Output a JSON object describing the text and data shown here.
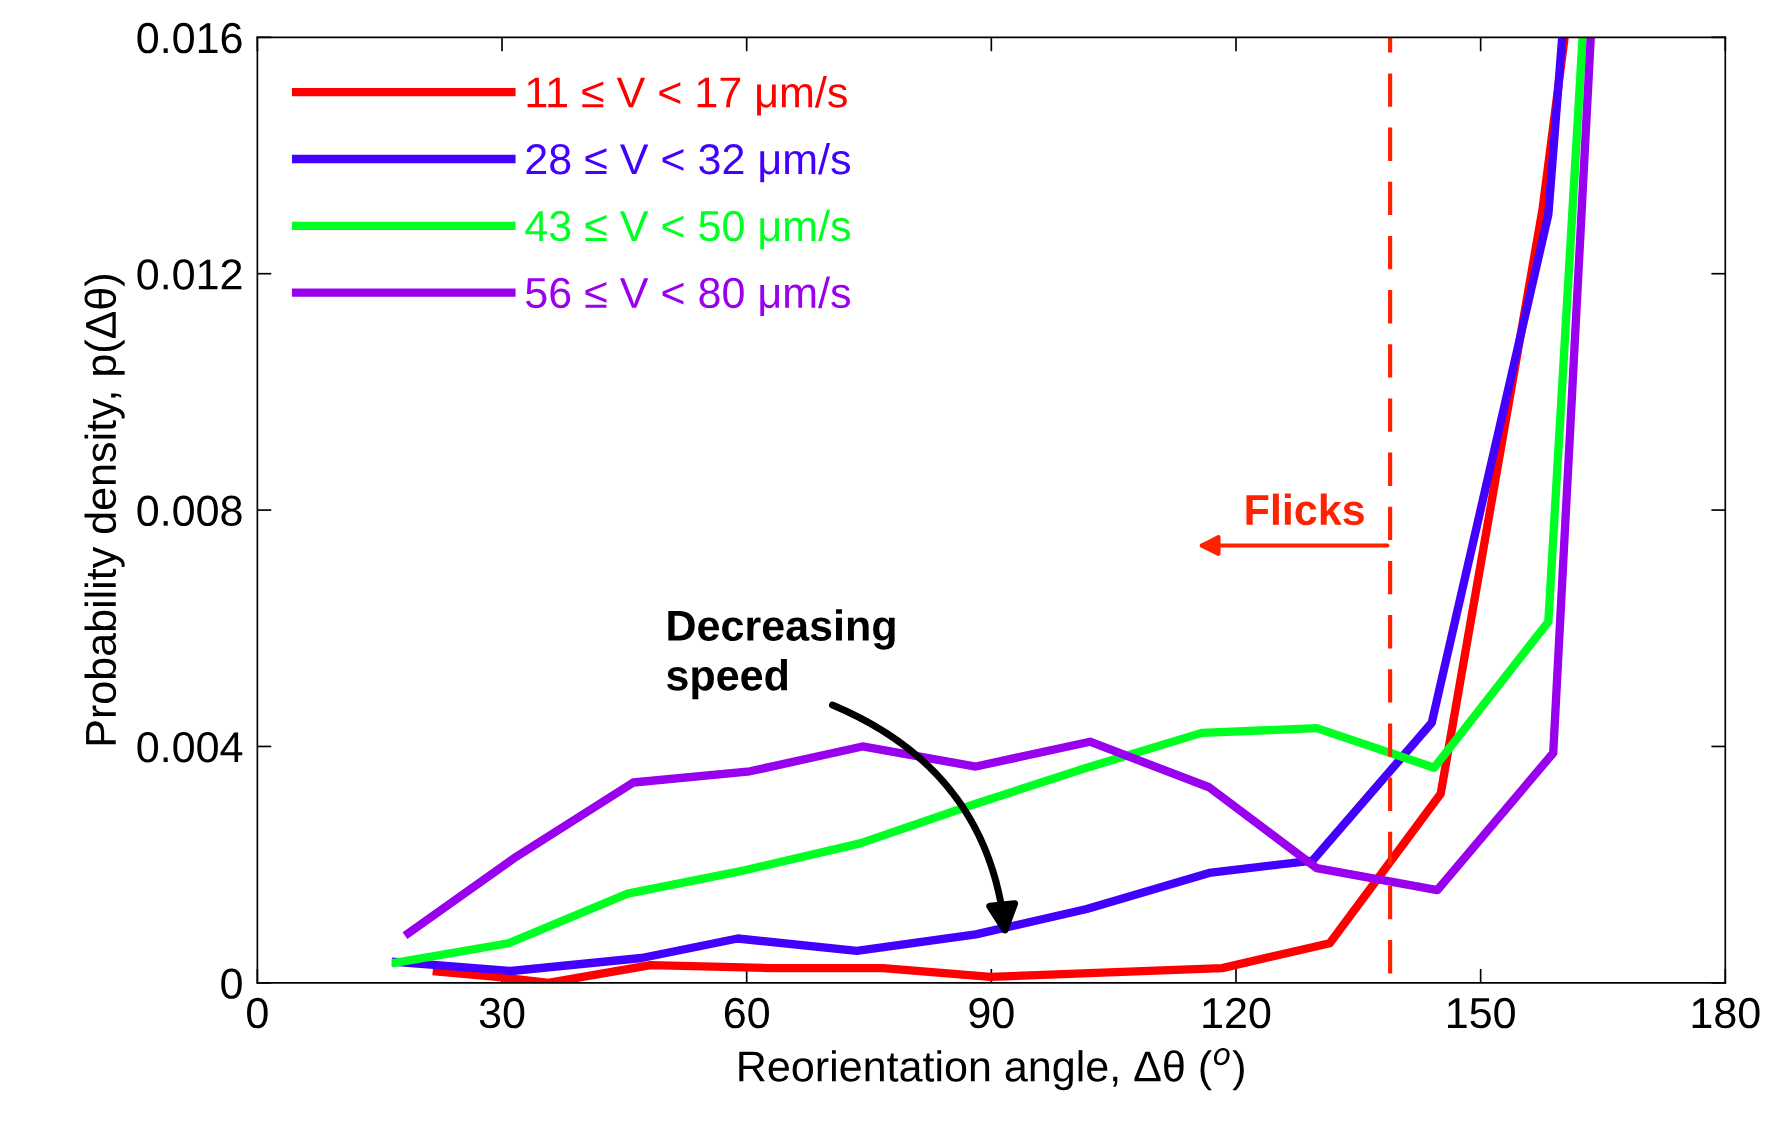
{
  "chart_data": {
    "type": "line",
    "xlabel": "Reorientation angle, Δθ ($^{o}$)",
    "ylabel": "Probability density, p(Δθ)",
    "xlim": [
      0,
      180
    ],
    "xticks": [
      0,
      30,
      60,
      90,
      120,
      150,
      180
    ],
    "ylim": [
      0,
      0.016
    ],
    "yticks": [
      0,
      0.004,
      0.008,
      0.012,
      0.016
    ],
    "grid": false,
    "legend": "top left",
    "marker": "none",
    "line_style": "solid",
    "series": [
      {
        "name": "11 ≤ V < 17 μm/s",
        "color": "#ff0000",
        "x": [
          21.5,
          29.4,
          35.7,
          48.2,
          62.8,
          76.7,
          89.9,
          118.3,
          131.5,
          145.1,
          157.6,
          160.3
        ],
        "values": [
          0.0002,
          0.0001,
          0,
          0.0003,
          0.00025,
          0.00025,
          0.0001,
          0.00025,
          0.00067,
          0.0032,
          0.0131,
          0.016
        ]
      },
      {
        "name": "28 ≤ V < 32 μm/s",
        "color": "#4400ff",
        "x": [
          16.5,
          31.1,
          47.1,
          58.9,
          73.5,
          88.1,
          101.7,
          116.7,
          129.4,
          144,
          158.3,
          160
        ],
        "values": [
          0.00036,
          0.0002,
          0.00042,
          0.00075,
          0.00054,
          0.00082,
          0.00125,
          0.00186,
          0.00207,
          0.0044,
          0.013,
          0.016
        ]
      },
      {
        "name": "43 ≤ V < 50 μm/s",
        "color": "#00ff22",
        "x": [
          16.5,
          30.8,
          45.4,
          59.6,
          73.9,
          88.1,
          101.7,
          115.8,
          129.9,
          144.3,
          158.3,
          162.5
        ],
        "values": [
          0.00033,
          0.00067,
          0.00151,
          0.0019,
          0.00236,
          0.00303,
          0.00364,
          0.00423,
          0.00431,
          0.00364,
          0.00611,
          0.016
        ]
      },
      {
        "name": "56 ≤ V < 80 μm/s",
        "color": "#9900ee",
        "x": [
          18.1,
          31.7,
          46.1,
          60.4,
          74.2,
          88.1,
          102.1,
          116.7,
          129.9,
          144.7,
          158.9,
          163.5
        ],
        "values": [
          0.0008,
          0.00213,
          0.00339,
          0.00358,
          0.004,
          0.00366,
          0.00408,
          0.00331,
          0.00194,
          0.00157,
          0.00389,
          0.016
        ]
      }
    ],
    "ref_lines": [
      {
        "axis": "x",
        "value": 138.9,
        "label": "Flicks",
        "color": "#ff2200",
        "line_style": "dashed"
      }
    ],
    "annotations": [
      "Decreasing\nspeed"
    ]
  }
}
